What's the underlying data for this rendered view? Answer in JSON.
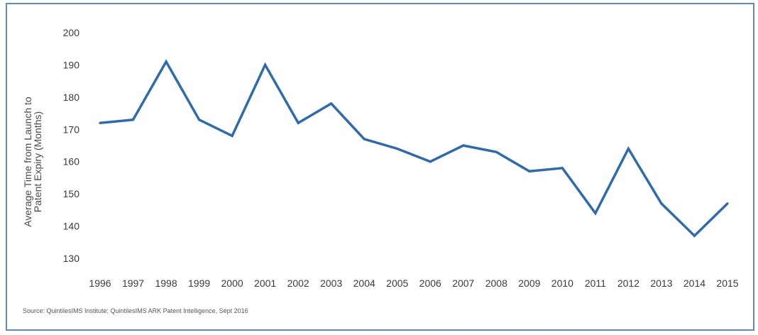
{
  "chart_data": {
    "type": "line",
    "title": "",
    "ylabel": "Average Time from Launch to Patent Expiry (Months)",
    "ylabel_lines": [
      "Average Time from Launch to",
      "Patent Expiry (Months)"
    ],
    "xlabel": "",
    "x": [
      "1996",
      "1997",
      "1998",
      "1999",
      "2000",
      "2001",
      "2002",
      "2003",
      "2004",
      "2005",
      "2006",
      "2007",
      "2008",
      "2009",
      "2010",
      "2011",
      "2012",
      "2013",
      "2014",
      "2015"
    ],
    "series": [
      {
        "values": [
          172,
          173,
          191,
          173,
          168,
          190,
          172,
          178,
          167,
          164,
          160,
          165,
          163,
          157,
          158,
          144,
          164,
          147,
          137,
          147
        ]
      }
    ],
    "ylim": [
      130,
      200
    ],
    "yticks": [
      130,
      140,
      150,
      160,
      170,
      180,
      190,
      200
    ],
    "grid": false,
    "legend": "none",
    "line_color": "#2e6aae",
    "source": "Source: QuintilesIMS Institute; QuintilesIMS ARK Patent Intelligence, Sept 2016"
  }
}
